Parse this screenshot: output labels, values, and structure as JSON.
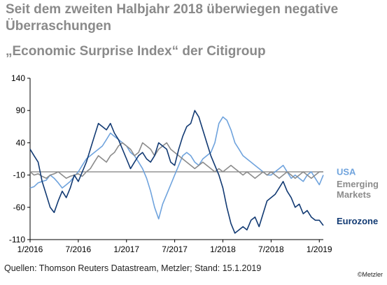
{
  "title": "Seit dem zweiten Halbjahr 2018 überwiegen negative Überraschungen",
  "subtitle": "„Economic Surprise Index“ der Citigroup",
  "source": "Quellen: Thomson Reuters Datastream, Metzler; Stand: 15.1.2019",
  "copyright": "©Metzler",
  "colors": {
    "usa": "#6fa3dd",
    "emerging": "#8c8c8c",
    "eurozone": "#123a73",
    "axis": "#000000",
    "zeroline": "#7f7f7f"
  },
  "chart_data": {
    "type": "line",
    "yticks": [
      140,
      90,
      40,
      -10,
      -60,
      -110
    ],
    "xticks": [
      "1/2016",
      "7/2016",
      "1/2017",
      "7/2017",
      "1/2018",
      "7/2018",
      "1/2019"
    ],
    "ylim": [
      -110,
      140
    ],
    "xlim": [
      0,
      36.5
    ],
    "reference_line": -5,
    "legend_placement": "right",
    "series": [
      {
        "name": "USA",
        "label_lines": [
          "USA"
        ],
        "label_at": -10,
        "color_key": "usa",
        "x": [
          0,
          0.5,
          1,
          1.5,
          2,
          2.5,
          3,
          3.5,
          4,
          4.5,
          5,
          5.5,
          6,
          6.5,
          7,
          7.5,
          8,
          8.5,
          9,
          9.5,
          10,
          10.5,
          11,
          11.5,
          12,
          12.5,
          13,
          13.5,
          14,
          14.5,
          15,
          15.5,
          16,
          16.5,
          17,
          17.5,
          18,
          18.5,
          19,
          19.5,
          20,
          20.5,
          21,
          21.5,
          22,
          22.5,
          23,
          23.5,
          24,
          24.5,
          25,
          25.5,
          26,
          26.5,
          27,
          27.5,
          28,
          28.5,
          29,
          29.5,
          30,
          30.5,
          31,
          31.5,
          32,
          32.5,
          33,
          33.5,
          34,
          34.5,
          35,
          35.5,
          36,
          36.5
        ],
        "y": [
          -30,
          -28,
          -22,
          -20,
          -18,
          -10,
          -15,
          -22,
          -30,
          -25,
          -20,
          -12,
          -5,
          5,
          15,
          20,
          25,
          30,
          35,
          45,
          55,
          50,
          45,
          40,
          35,
          25,
          20,
          10,
          0,
          -15,
          -35,
          -60,
          -78,
          -55,
          -40,
          -25,
          -10,
          5,
          20,
          25,
          20,
          10,
          5,
          15,
          20,
          25,
          40,
          70,
          80,
          75,
          60,
          40,
          30,
          20,
          15,
          10,
          5,
          0,
          -5,
          -10,
          -10,
          -5,
          0,
          5,
          -5,
          -15,
          -10,
          -15,
          -20,
          -10,
          -5,
          -15,
          -25,
          -10
        ]
      },
      {
        "name": "Emerging Markets",
        "label_lines": [
          "Emerging",
          "Markets"
        ],
        "label_at": -29,
        "color_key": "emerging",
        "x": [
          0,
          0.5,
          1,
          1.5,
          2,
          2.5,
          3,
          3.5,
          4,
          4.5,
          5,
          5.5,
          6,
          6.5,
          7,
          7.5,
          8,
          8.5,
          9,
          9.5,
          10,
          10.5,
          11,
          11.5,
          12,
          12.5,
          13,
          13.5,
          14,
          14.5,
          15,
          15.5,
          16,
          16.5,
          17,
          17.5,
          18,
          18.5,
          19,
          19.5,
          20,
          20.5,
          21,
          21.5,
          22,
          22.5,
          23,
          23.5,
          24,
          24.5,
          25,
          25.5,
          26,
          26.5,
          27,
          27.5,
          28,
          28.5,
          29,
          29.5,
          30,
          30.5,
          31,
          31.5,
          32,
          32.5,
          33,
          33.5,
          34,
          34.5,
          35,
          35.5,
          36,
          36.5
        ],
        "y": [
          -5,
          -10,
          -8,
          -12,
          -15,
          -10,
          -8,
          -5,
          -10,
          -15,
          -12,
          -10,
          -8,
          -12,
          -5,
          0,
          10,
          20,
          15,
          10,
          20,
          25,
          35,
          40,
          35,
          30,
          20,
          25,
          40,
          35,
          30,
          20,
          30,
          35,
          40,
          30,
          25,
          20,
          15,
          10,
          5,
          0,
          5,
          10,
          5,
          0,
          -5,
          0,
          -5,
          0,
          5,
          0,
          -5,
          -10,
          -5,
          -10,
          -15,
          -10,
          -5,
          -10,
          -5,
          -10,
          -15,
          -10,
          -5,
          -10,
          -15,
          -10,
          -5,
          -10,
          -15,
          -10,
          -5,
          -5
        ]
      },
      {
        "name": "Eurozone",
        "label_lines": [
          "Eurozone"
        ],
        "label_at": -86,
        "color_key": "eurozone",
        "x": [
          0,
          0.5,
          1,
          1.5,
          2,
          2.5,
          3,
          3.5,
          4,
          4.5,
          5,
          5.5,
          6,
          6.5,
          7,
          7.5,
          8,
          8.5,
          9,
          9.5,
          10,
          10.5,
          11,
          11.5,
          12,
          12.5,
          13,
          13.5,
          14,
          14.5,
          15,
          15.5,
          16,
          16.5,
          17,
          17.5,
          18,
          18.5,
          19,
          19.5,
          20,
          20.5,
          21,
          21.5,
          22,
          22.5,
          23,
          23.5,
          24,
          24.5,
          25,
          25.5,
          26,
          26.5,
          27,
          27.5,
          28,
          28.5,
          29,
          29.5,
          30,
          30.5,
          31,
          31.5,
          32,
          32.5,
          33,
          33.5,
          34,
          34.5,
          35,
          35.5,
          36,
          36.5
        ],
        "y": [
          30,
          20,
          10,
          -20,
          -40,
          -60,
          -68,
          -50,
          -35,
          -45,
          -30,
          -10,
          -20,
          -5,
          10,
          30,
          50,
          70,
          65,
          60,
          70,
          55,
          45,
          30,
          15,
          0,
          10,
          20,
          25,
          15,
          10,
          20,
          40,
          35,
          30,
          10,
          5,
          30,
          50,
          65,
          70,
          90,
          80,
          60,
          40,
          20,
          5,
          -10,
          -30,
          -60,
          -85,
          -100,
          -95,
          -90,
          -95,
          -80,
          -75,
          -90,
          -70,
          -50,
          -45,
          -40,
          -30,
          -20,
          -35,
          -45,
          -60,
          -55,
          -70,
          -65,
          -75,
          -80,
          -80,
          -88
        ]
      }
    ]
  }
}
